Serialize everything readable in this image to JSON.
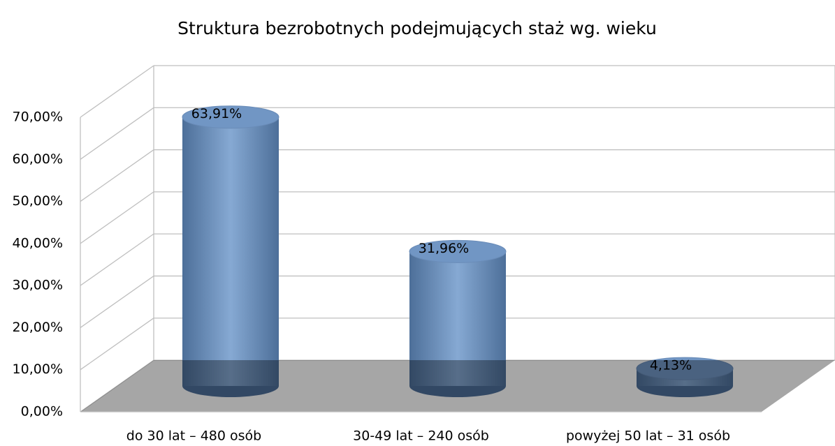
{
  "chart_data": {
    "type": "cylinder",
    "title": "Struktura bezrobotnych podejmujących staż wg. wieku",
    "categories": [
      "do 30 lat – 480 osób",
      "30-49 lat – 240 osób",
      "powyżej 50 lat – 31 osób"
    ],
    "values": [
      63.91,
      31.96,
      4.13
    ],
    "value_labels": [
      "63,91%",
      "31,96%",
      "4,13%"
    ],
    "color": "#7196c4",
    "ylim": [
      0,
      70
    ],
    "yticks": [
      {
        "value": 0,
        "label": "0,00%"
      },
      {
        "value": 10,
        "label": "10,00%"
      },
      {
        "value": 20,
        "label": "20,00%"
      },
      {
        "value": 30,
        "label": "30,00%"
      },
      {
        "value": 40,
        "label": "40,00%"
      },
      {
        "value": 50,
        "label": "50,00%"
      },
      {
        "value": 60,
        "label": "60,00%"
      },
      {
        "value": 70,
        "label": "70,00%"
      }
    ],
    "grid": true
  }
}
